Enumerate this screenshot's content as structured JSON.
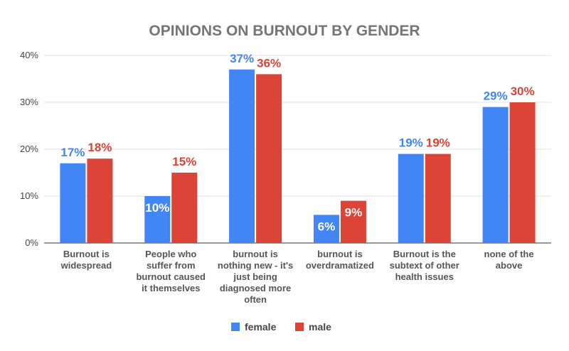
{
  "chart_data": {
    "type": "bar",
    "title": "OPINIONS ON BURNOUT BY GENDER",
    "xlabel": "",
    "ylabel": "",
    "ylim": [
      0,
      40
    ],
    "y_ticks": [
      "0%",
      "10%",
      "20%",
      "30%",
      "40%"
    ],
    "y_tick_values": [
      0,
      10,
      20,
      30,
      40
    ],
    "grid": true,
    "legend_position": "bottom",
    "categories": [
      [
        "Burnout is",
        "widespread"
      ],
      [
        "People who",
        "suffer from",
        "burnout caused",
        "it themselves"
      ],
      [
        "burnout is",
        "nothing new - it's",
        "just being",
        "diagnosed more",
        "often"
      ],
      [
        "burnout is",
        "overdramatized"
      ],
      [
        "Burnout is the",
        "subtext of other",
        "health issues"
      ],
      [
        "none of the",
        "above"
      ]
    ],
    "series": [
      {
        "name": "female",
        "color": "#4285f4",
        "values": [
          17,
          10,
          37,
          6,
          19,
          29
        ],
        "labels": [
          "17%",
          "10%",
          "37%",
          "6%",
          "19%",
          "29%"
        ]
      },
      {
        "name": "male",
        "color": "#db4437",
        "values": [
          18,
          15,
          36,
          9,
          19,
          30
        ],
        "labels": [
          "18%",
          "15%",
          "36%",
          "9%",
          "19%",
          "30%"
        ]
      }
    ]
  }
}
